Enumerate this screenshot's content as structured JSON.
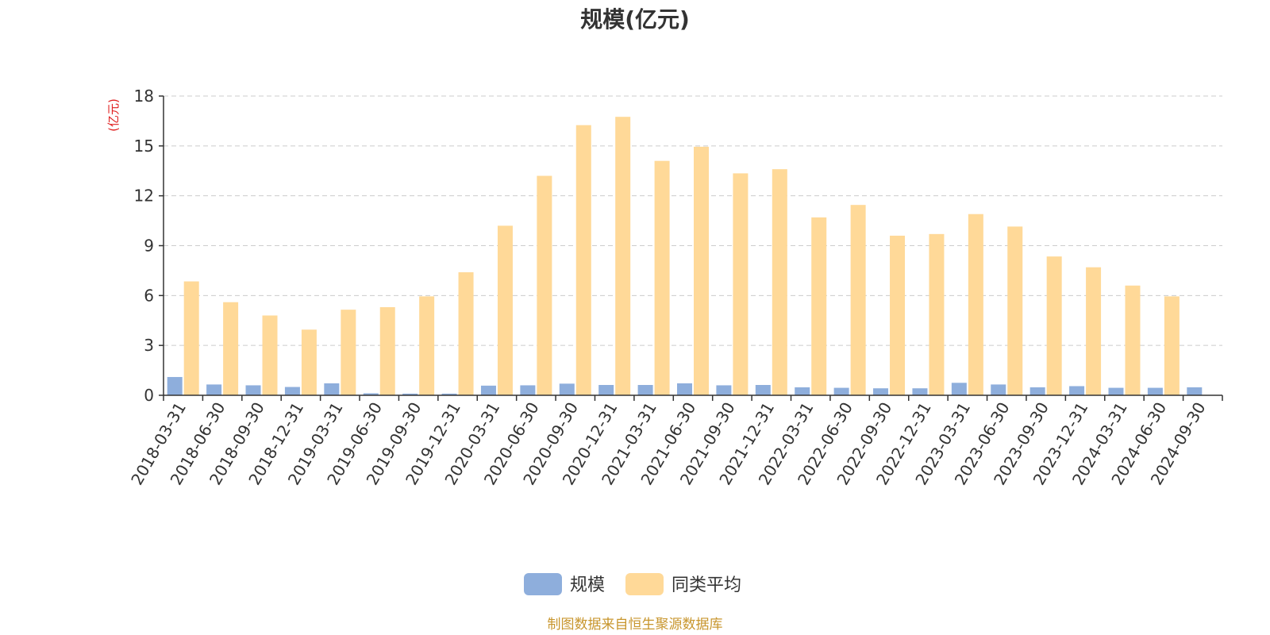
{
  "chart_data": {
    "type": "bar",
    "title": "规模(亿元)",
    "ylabel": "(亿元)",
    "ylim": [
      0,
      18
    ],
    "yticks": [
      0,
      3,
      6,
      9,
      12,
      15,
      18
    ],
    "grid": true,
    "legend_position": "bottom",
    "categories": [
      "2018-03-31",
      "2018-06-30",
      "2018-09-30",
      "2018-12-31",
      "2019-03-31",
      "2019-06-30",
      "2019-09-30",
      "2019-12-31",
      "2020-03-31",
      "2020-06-30",
      "2020-09-30",
      "2020-12-31",
      "2021-03-31",
      "2021-06-30",
      "2021-09-30",
      "2021-12-31",
      "2022-03-31",
      "2022-06-30",
      "2022-09-30",
      "2022-12-31",
      "2023-03-31",
      "2023-06-30",
      "2023-09-30",
      "2023-12-31",
      "2024-03-31",
      "2024-06-30",
      "2024-09-30"
    ],
    "series": [
      {
        "name": "规模",
        "color": "#8eaedc",
        "values": [
          1.1,
          0.65,
          0.6,
          0.5,
          0.72,
          0.12,
          0.1,
          0.1,
          0.58,
          0.6,
          0.7,
          0.62,
          0.62,
          0.72,
          0.6,
          0.62,
          0.48,
          0.45,
          0.42,
          0.42,
          0.75,
          0.65,
          0.48,
          0.55,
          0.45,
          0.45,
          0.48
        ]
      },
      {
        "name": "同类平均",
        "color": "#ffd998",
        "values": [
          6.85,
          5.6,
          4.8,
          3.95,
          5.15,
          5.3,
          5.95,
          7.4,
          10.2,
          13.2,
          16.25,
          16.75,
          14.1,
          14.95,
          13.35,
          13.6,
          10.7,
          11.45,
          9.6,
          9.7,
          10.9,
          10.15,
          8.35,
          7.7,
          6.6,
          5.95,
          null
        ]
      }
    ],
    "source": "制图数据来自恒生聚源数据库"
  }
}
